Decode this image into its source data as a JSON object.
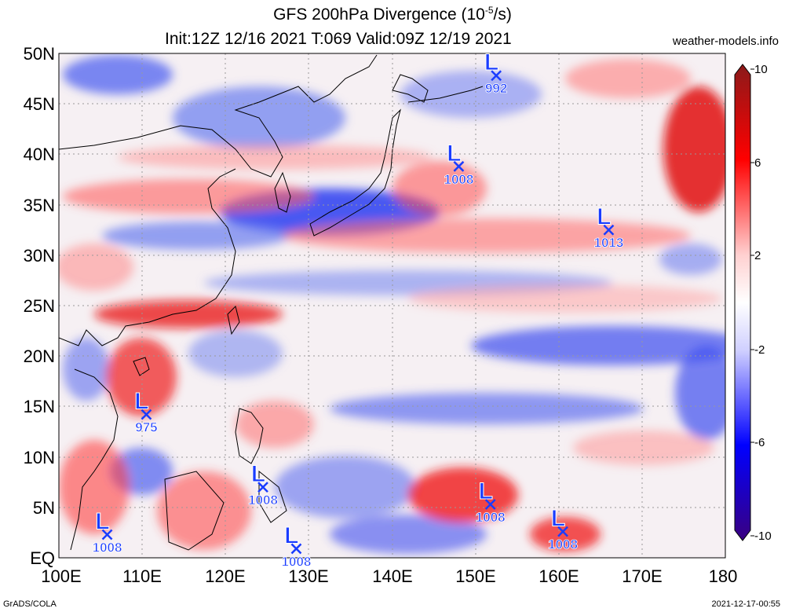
{
  "header": {
    "title_main": "GFS 200hPa Divergence (10",
    "title_exp": "-5",
    "title_unit": "/s)",
    "subtitle": "Init:12Z 12/16 2021 T:069 Valid:09Z 12/19 2021",
    "site": "weather-models.info"
  },
  "axes": {
    "lat_labels": [
      "50N",
      "45N",
      "40N",
      "35N",
      "30N",
      "25N",
      "20N",
      "15N",
      "10N",
      "5N",
      "EQ"
    ],
    "lon_labels": [
      "100E",
      "110E",
      "120E",
      "130E",
      "140E",
      "150E",
      "160E",
      "170E",
      "180"
    ]
  },
  "colorbar": {
    "labels": [
      "10",
      "6",
      "2",
      "-2",
      "-6",
      "-10"
    ],
    "colors": [
      "#8b1a1a",
      "#ff0000",
      "#ffd0d0",
      "#ffffff",
      "#d0d0ff",
      "#0000ff",
      "#3a0080"
    ]
  },
  "lows": [
    {
      "pressure": "992",
      "letter": "L",
      "lon": 152.5,
      "lat": 47.8
    },
    {
      "pressure": "1008",
      "letter": "L",
      "lon": 148.0,
      "lat": 38.8
    },
    {
      "pressure": "1013",
      "letter": "L",
      "lon": 166.0,
      "lat": 32.5
    },
    {
      "pressure": "975",
      "letter": "L",
      "lon": 110.5,
      "lat": 14.2
    },
    {
      "pressure": "1008",
      "letter": "L",
      "lon": 124.5,
      "lat": 7.0
    },
    {
      "pressure": "1008",
      "letter": "L",
      "lon": 151.8,
      "lat": 5.3
    },
    {
      "pressure": "1008",
      "letter": "L",
      "lon": 105.8,
      "lat": 2.3
    },
    {
      "pressure": "1008",
      "letter": "L",
      "lon": 128.5,
      "lat": 0.9
    },
    {
      "pressure": "1008",
      "letter": "L",
      "lon": 160.5,
      "lat": 2.6
    }
  ],
  "footer": {
    "left": "GrADS/COLA",
    "right": "2021-12-17-00:55"
  }
}
